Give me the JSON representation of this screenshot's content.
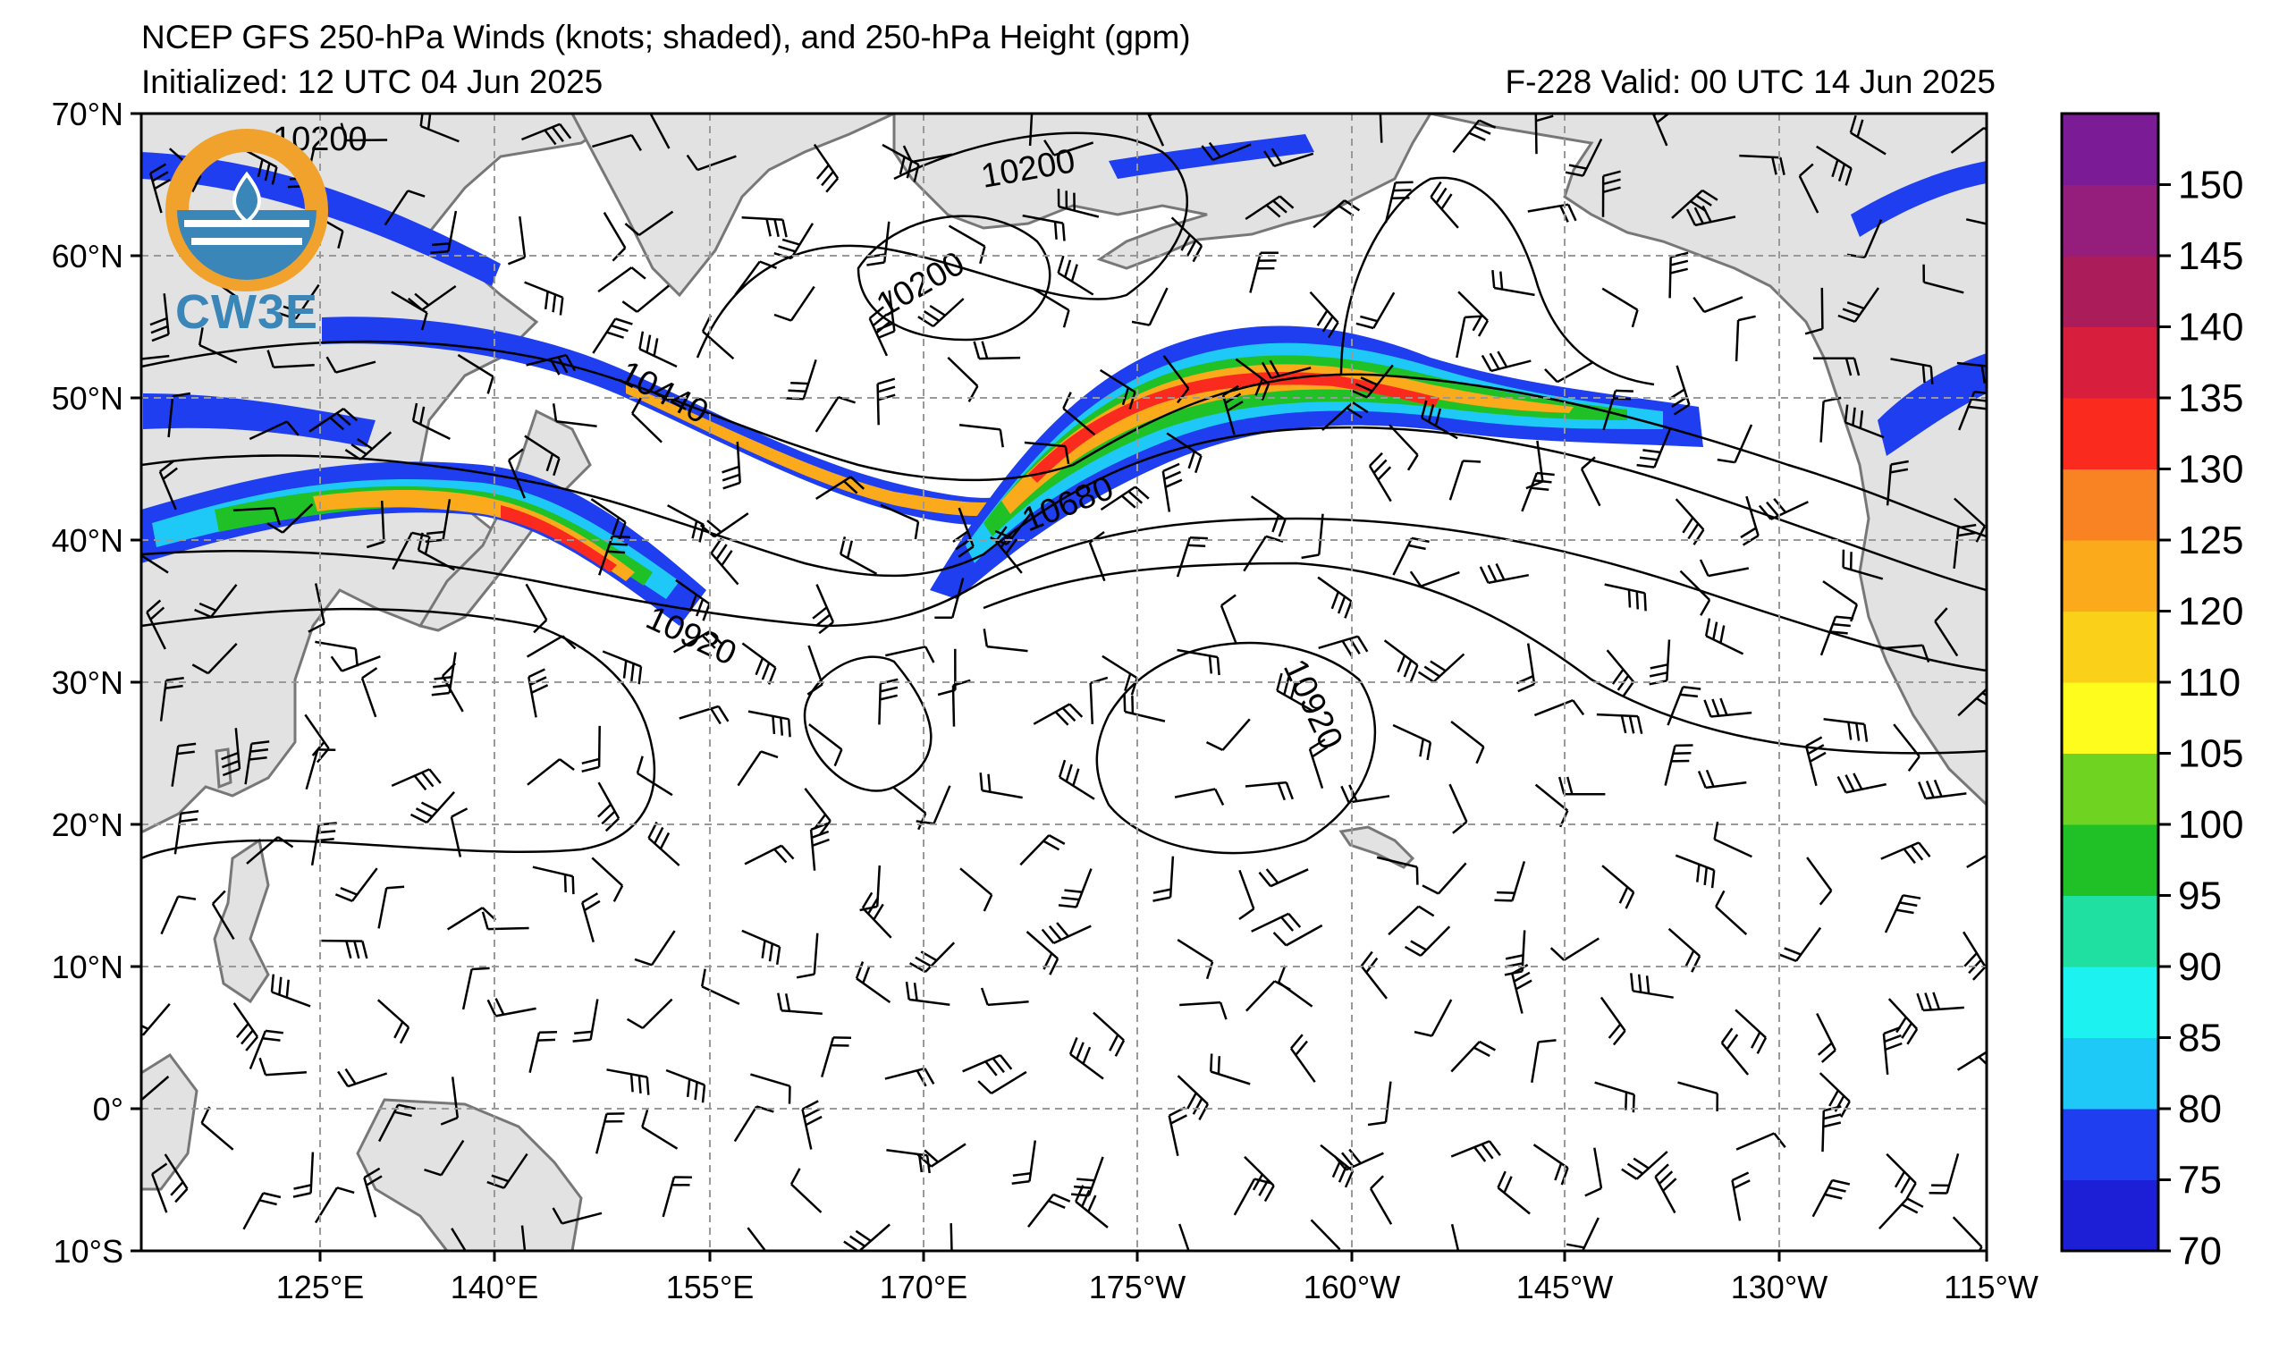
{
  "header": {
    "title": "NCEP GFS 250-hPa Winds (knots; shaded), and 250-hPa Height (gpm)",
    "initialized": "Initialized: 12 UTC 04 Jun 2025",
    "valid": "F-228  Valid: 00 UTC 14 Jun 2025"
  },
  "logo": {
    "text": "CW3E"
  },
  "map": {
    "lon_labels": [
      "125°E",
      "140°E",
      "155°E",
      "170°E",
      "175°W",
      "160°W",
      "145°W",
      "130°W",
      "115°W"
    ],
    "lat_labels": [
      "70°N",
      "60°N",
      "50°N",
      "40°N",
      "30°N",
      "20°N",
      "10°N",
      "0°",
      "10°S"
    ],
    "contour_labels": [
      "10200",
      "10200",
      "10200",
      "10440",
      "10680",
      "10920",
      "10920"
    ]
  },
  "colorbar": {
    "ticks": [
      "70",
      "75",
      "80",
      "85",
      "90",
      "95",
      "100",
      "105",
      "110",
      "120",
      "125",
      "130",
      "135",
      "140",
      "145",
      "150"
    ],
    "colors": [
      "#1c1fd6",
      "#1f3ef0",
      "#1ec8f7",
      "#1cf2ef",
      "#1fdfa1",
      "#20c027",
      "#6fd321",
      "#fdfc1c",
      "#fbd018",
      "#faaa1a",
      "#f98322",
      "#fb2a1f",
      "#d71f3d",
      "#ab1c5a",
      "#951d7c",
      "#7b1c96"
    ]
  },
  "colors": {
    "land": "#e2e2e2",
    "coast": "#777777",
    "grid": "#999999"
  }
}
